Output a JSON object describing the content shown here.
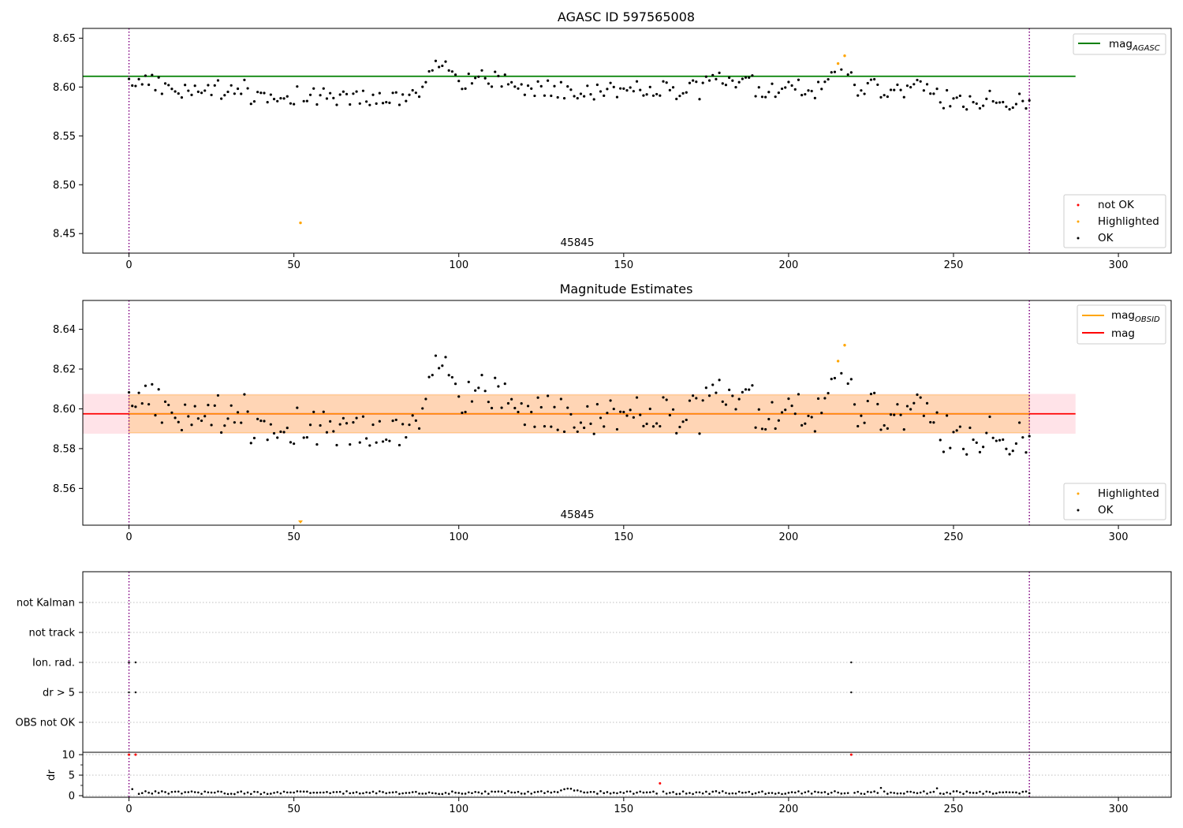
{
  "chart_data": [
    {
      "type": "scatter",
      "title": "AGASC ID 597565008",
      "annotation": "45845",
      "xlim": [
        -14,
        316
      ],
      "ylim": [
        8.43,
        8.66
      ],
      "xticks": [
        0,
        50,
        100,
        150,
        200,
        250,
        300
      ],
      "yticks": [
        8.45,
        8.5,
        8.55,
        8.6,
        8.65
      ],
      "ytick_labels": [
        "8.45",
        "8.50",
        "8.55",
        "8.60",
        "8.65"
      ],
      "grid": false,
      "vlines": [
        0,
        273
      ],
      "hlines": [
        {
          "name": "mag",
          "name_sub": "AGASC",
          "value": 8.611,
          "x_end": 287,
          "color": "#008000"
        }
      ],
      "legend_lines": {
        "placement": "top-right",
        "entries": [
          {
            "label": "mag",
            "sub": "AGASC",
            "color": "#008000"
          }
        ]
      },
      "legend_points": {
        "placement": "bottom-right",
        "entries": [
          {
            "label": "not OK",
            "color": "#ff0000"
          },
          {
            "label": "Highlighted",
            "color": "#ffa500"
          },
          {
            "label": "OK",
            "color": "#000000"
          }
        ]
      },
      "highlighted_points": [
        {
          "x": 52,
          "y": 8.461
        },
        {
          "x": 215,
          "y": 8.624
        },
        {
          "x": 217,
          "y": 8.632
        }
      ]
    },
    {
      "type": "scatter",
      "title": "Magnitude Estimates",
      "annotation": "45845",
      "xlim": [
        -14,
        316
      ],
      "ylim": [
        8.5415,
        8.6545
      ],
      "xticks": [
        0,
        50,
        100,
        150,
        200,
        250,
        300
      ],
      "yticks": [
        8.56,
        8.58,
        8.6,
        8.62,
        8.64
      ],
      "ytick_labels": [
        "8.56",
        "8.58",
        "8.60",
        "8.62",
        "8.64"
      ],
      "grid": false,
      "vlines": [
        0,
        273
      ],
      "hlines": [
        {
          "name": "mag",
          "value": 8.5975,
          "x_end": 287,
          "color": "#ff0000"
        }
      ],
      "bands": [
        {
          "y0": 8.5875,
          "y1": 8.6075,
          "color": "#ffc0cb"
        },
        {
          "y0": 8.588,
          "y1": 8.607,
          "color": "#ffa500"
        }
      ],
      "legend_lines": {
        "placement": "top-right",
        "entries": [
          {
            "label": "mag",
            "sub": "OBSID",
            "color": "#ffa500"
          },
          {
            "label": "mag",
            "color": "#ff0000"
          }
        ]
      },
      "legend_points": {
        "placement": "bottom-right",
        "entries": [
          {
            "label": "Highlighted",
            "color": "#ffa500"
          },
          {
            "label": "OK",
            "color": "#000000"
          }
        ]
      },
      "highlighted_points": [
        {
          "x": 215,
          "y": 8.624
        },
        {
          "x": 217,
          "y": 8.632
        }
      ],
      "offscale_marker": {
        "x": 52,
        "y": 8.5415,
        "color": "#ffa500"
      }
    },
    {
      "type": "scatter",
      "title": "",
      "xlim": [
        -14,
        316
      ],
      "xticks": [
        0,
        50,
        100,
        150,
        200,
        250,
        300
      ],
      "flag_rows": [
        "not Kalman",
        "not track",
        "Ion. rad.",
        "dr > 5",
        "OBS not OK"
      ],
      "flag_points": [
        {
          "row": "Ion. rad.",
          "x": [
            0,
            2,
            219
          ]
        },
        {
          "row": "dr > 5",
          "x": [
            0,
            2,
            219
          ]
        }
      ],
      "dr_axis": {
        "ylabel": "dr",
        "ylim": [
          -0.5,
          11.5
        ],
        "yticks": [
          0,
          5,
          10
        ],
        "ytick_labels": [
          "0",
          "5",
          "10"
        ]
      },
      "dr_outliers": [
        {
          "x": 0,
          "y": 10,
          "color": "#ff0000"
        },
        {
          "x": 2,
          "y": 10,
          "color": "#ff0000"
        },
        {
          "x": 161,
          "y": 3,
          "color": "#ff0000"
        },
        {
          "x": 219,
          "y": 10,
          "color": "#ff0000"
        }
      ],
      "vlines": [
        0,
        273
      ]
    }
  ]
}
